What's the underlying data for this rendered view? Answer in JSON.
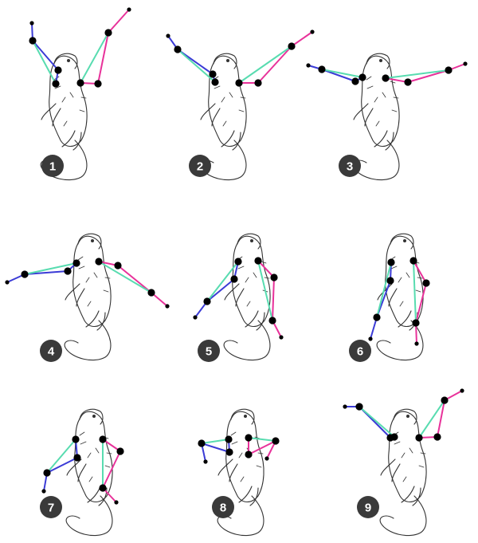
{
  "colors": {
    "background": "#ffffff",
    "sketch": "#333333",
    "left_chain": "#3b3bd6",
    "right_chain": "#e8329a",
    "mid_link": "#58dcb0",
    "joint": "#000000",
    "badge": "#3a3a3a",
    "badge_text": "#ffffff"
  },
  "panels": [
    {
      "number": "1"
    },
    {
      "number": "2"
    },
    {
      "number": "3"
    },
    {
      "number": "4"
    },
    {
      "number": "5"
    },
    {
      "number": "6"
    },
    {
      "number": "7"
    },
    {
      "number": "8"
    },
    {
      "number": "9"
    }
  ]
}
